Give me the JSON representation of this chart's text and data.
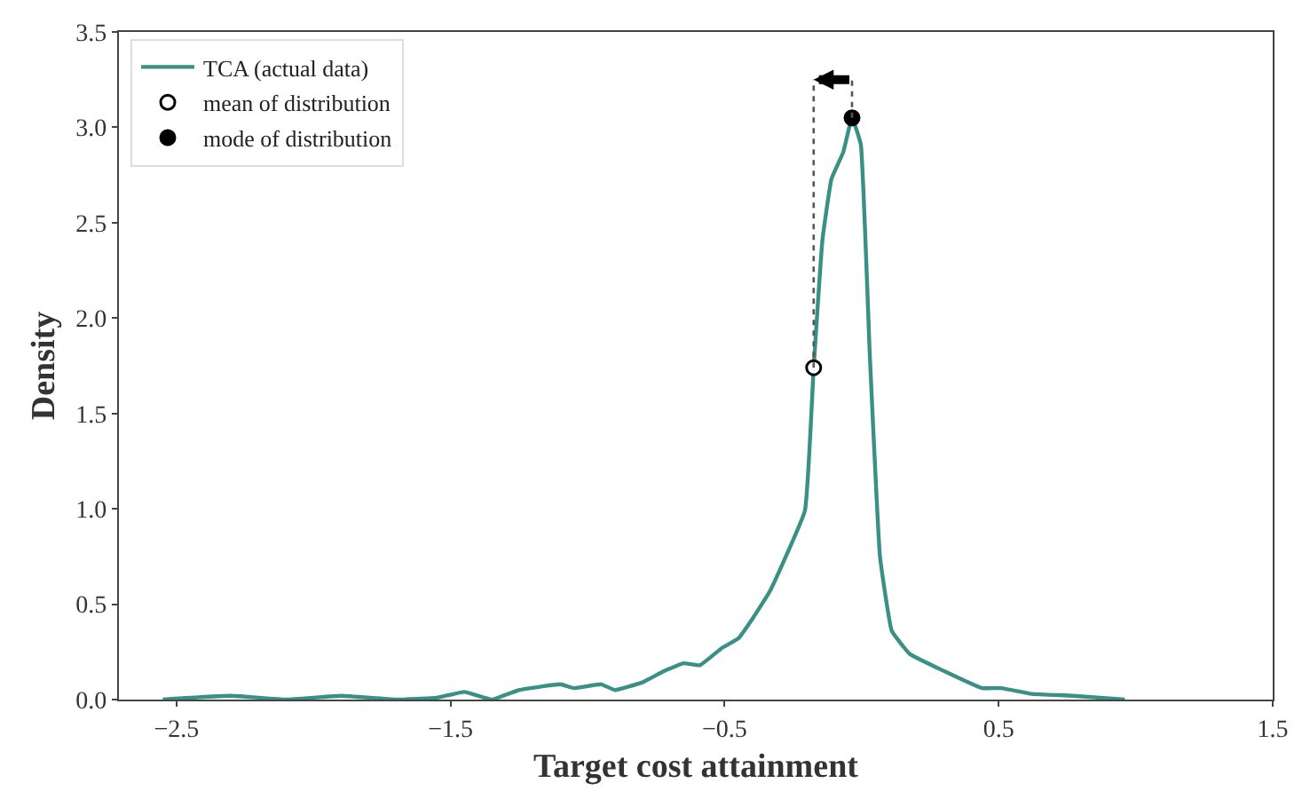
{
  "chart_data": {
    "type": "line",
    "xlabel": "Target cost attainment",
    "ylabel": "Density",
    "xlim": [
      -2.71,
      1.5
    ],
    "ylim": [
      0,
      3.5
    ],
    "xticks": [
      {
        "value": -2.5,
        "label": "−2.5"
      },
      {
        "value": -1.5,
        "label": "−1.5"
      },
      {
        "value": -0.5,
        "label": "−0.5"
      },
      {
        "value": 0.5,
        "label": "0.5"
      },
      {
        "value": 1.5,
        "label": "1.5"
      }
    ],
    "yticks": [
      {
        "value": 0,
        "label": "0.0"
      },
      {
        "value": 0.5,
        "label": "0.5"
      },
      {
        "value": 1,
        "label": "1.0"
      },
      {
        "value": 1.5,
        "label": "1.5"
      },
      {
        "value": 2,
        "label": "2.0"
      },
      {
        "value": 2.5,
        "label": "2.5"
      },
      {
        "value": 3,
        "label": "3.0"
      },
      {
        "value": 3.5,
        "label": "3.5"
      }
    ],
    "legend": "top left",
    "series": [
      {
        "name": "TCA (actual data)",
        "color": "#3a8f87",
        "x": [
          -2.55,
          -2.3,
          -2.1,
          -1.9,
          -1.7,
          -1.55,
          -1.45,
          -1.35,
          -1.25,
          -1.1,
          -1.05,
          -0.95,
          -0.9,
          -0.8,
          -0.72,
          -0.65,
          -0.59,
          -0.51,
          -0.45,
          -0.4,
          -0.334,
          -0.207,
          -0.175,
          -0.143,
          -0.11,
          -0.067,
          -0.035,
          -0.003,
          0.03,
          0.067,
          0.11,
          0.175,
          0.3,
          0.44,
          0.51,
          0.62,
          0.77,
          0.96
        ],
        "values": [
          0,
          0.02,
          0,
          0.02,
          0,
          0.01,
          0.04,
          0,
          0.05,
          0.08,
          0.06,
          0.08,
          0.05,
          0.09,
          0.15,
          0.19,
          0.18,
          0.27,
          0.32,
          0.42,
          0.57,
          0.99,
          1.74,
          2.41,
          2.73,
          2.87,
          3.05,
          2.91,
          1.8,
          0.75,
          0.36,
          0.24,
          0.15,
          0.06,
          0.06,
          0.03,
          0.02,
          0
        ]
      },
      {
        "name": "mean of distribution",
        "type": "scatter",
        "marker": "circle",
        "color": "#ffffff",
        "x": [
          -0.175
        ],
        "values": [
          1.74
        ]
      },
      {
        "name": "mode of distribution",
        "type": "scatter",
        "marker": "circle",
        "color": "#000000",
        "x": [
          -0.035
        ],
        "values": [
          3.05
        ]
      },
      {
        "type": "line",
        "color": "#555555",
        "line_style": "dotted",
        "x": [
          -0.175,
          -0.175
        ],
        "values": [
          1.74,
          3.25
        ]
      },
      {
        "type": "line",
        "color": "#555555",
        "line_style": "dotted",
        "x": [
          -0.035,
          -0.035
        ],
        "values": [
          3.05,
          3.25
        ]
      }
    ]
  }
}
